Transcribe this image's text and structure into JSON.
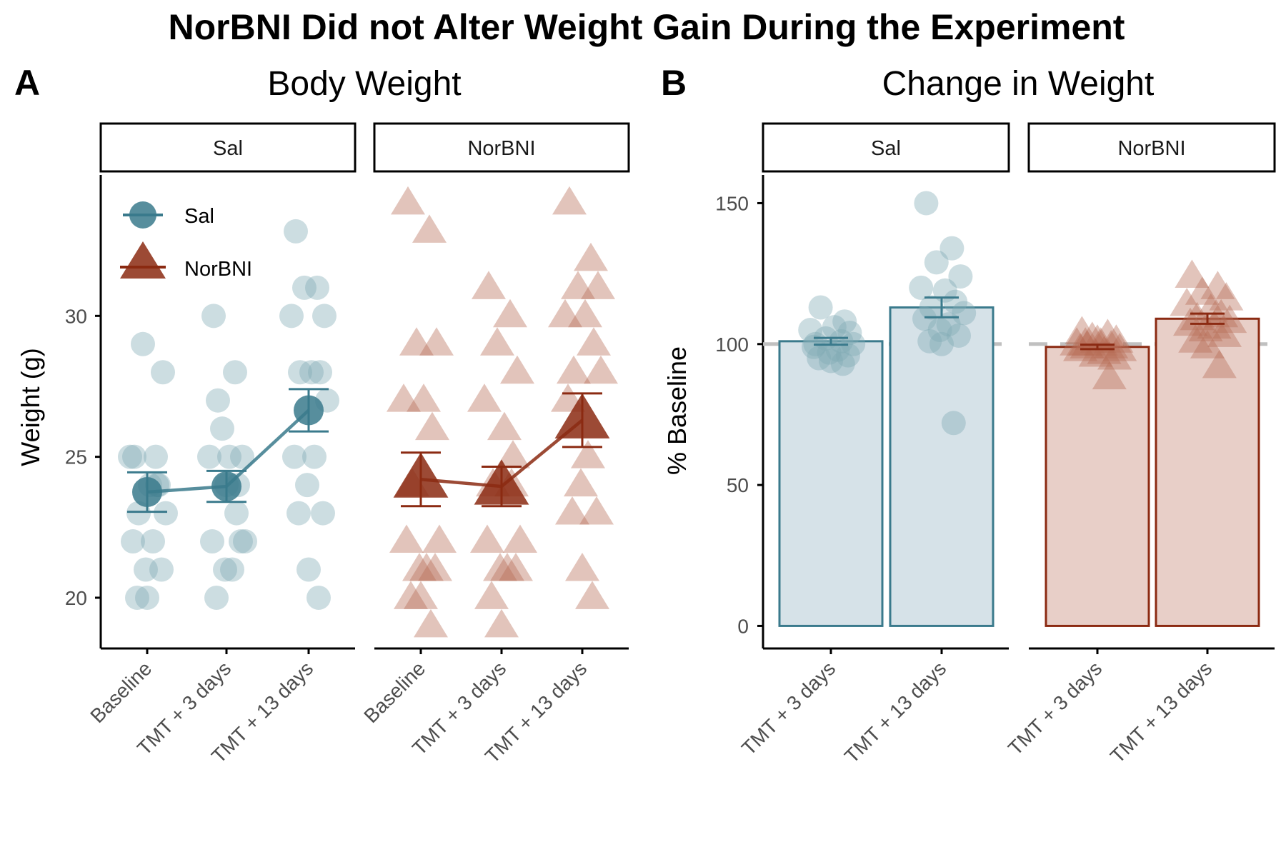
{
  "title": "NorBNI Did not Alter Weight Gain During the Experiment",
  "colors": {
    "sal": "#3A7A8C",
    "norbni": "#8B2A12",
    "baseline_line": "#C0C0C0",
    "axis": "#000000"
  },
  "panel_a": {
    "letter": "A",
    "title": "Body Weight",
    "ylabel": "Weight (g)",
    "facets": [
      "Sal",
      "NorBNI"
    ],
    "legend": [
      "Sal",
      "NorBNI"
    ]
  },
  "panel_b": {
    "letter": "B",
    "title": "Change in Weight",
    "ylabel": "% Baseline",
    "facets": [
      "Sal",
      "NorBNI"
    ]
  },
  "chart_data": [
    {
      "type": "scatter",
      "title": "Body Weight",
      "ylabel": "Weight (g)",
      "xlabel": "",
      "ylim": [
        18.2,
        35
      ],
      "yticks": [
        20,
        25,
        30
      ],
      "categories": [
        "Baseline",
        "TMT + 3 days",
        "TMT + 13 days"
      ],
      "facets": [
        "Sal",
        "NorBNI"
      ],
      "legend": "top-left",
      "series": [
        {
          "name": "Sal",
          "marker": "circle",
          "mean": [
            23.75,
            23.95,
            26.65
          ],
          "se": [
            0.7,
            0.55,
            0.75
          ],
          "points": [
            [
              25,
              25,
              29,
              28,
              25,
              24,
              24,
              23,
              23,
              22,
              22,
              21,
              21,
              20,
              20,
              24
            ],
            [
              30,
              28,
              26,
              25,
              25,
              25,
              24,
              27,
              22,
              22,
              21,
              21,
              22,
              20,
              24,
              23
            ],
            [
              33,
              31,
              31,
              30,
              30,
              28,
              28,
              28,
              27,
              25,
              25,
              24,
              23,
              23,
              21,
              20
            ]
          ]
        },
        {
          "name": "NorBNI",
          "marker": "triangle",
          "mean": [
            24.2,
            23.95,
            26.3
          ],
          "se": [
            0.95,
            0.7,
            0.95
          ],
          "points": [
            [
              34,
              33,
              29,
              29,
              27,
              27,
              26,
              24,
              22,
              22,
              21,
              21,
              21,
              20,
              20,
              19
            ],
            [
              31,
              30,
              29,
              28,
              27,
              26,
              25,
              24,
              22,
              22,
              21,
              21,
              21,
              20,
              19,
              24
            ],
            [
              34,
              32,
              31,
              31,
              30,
              30,
              29,
              28,
              28,
              27,
              25,
              24,
              23,
              23,
              21,
              20
            ]
          ]
        }
      ]
    },
    {
      "type": "bar",
      "title": "Change in Weight",
      "ylabel": "% Baseline",
      "xlabel": "",
      "ylim": [
        -8,
        160
      ],
      "yticks": [
        0,
        50,
        100,
        150
      ],
      "reference_line": 100,
      "categories": [
        "TMT + 3 days",
        "TMT + 13 days"
      ],
      "facets": [
        "Sal",
        "NorBNI"
      ],
      "series": [
        {
          "name": "Sal",
          "values": [
            101,
            113
          ],
          "se": [
            1.2,
            3.5
          ],
          "points": [
            [
              100,
              101,
              102,
              104,
              105,
              106,
              108,
              113,
              100,
              99,
              98,
              97,
              96,
              95,
              94,
              93
            ],
            [
              150,
              134,
              129,
              124,
              120,
              119,
              115,
              113,
              111,
              109,
              107,
              105,
              103,
              101,
              100,
              72
            ]
          ]
        },
        {
          "name": "NorBNI",
          "values": [
            99,
            109
          ],
          "se": [
            0.8,
            1.8
          ],
          "points": [
            [
              104,
              103,
              102,
              101,
              100,
              100,
              99,
              99,
              98,
              98,
              97,
              96,
              95,
              100,
              101,
              88
            ],
            [
              124,
              120,
              118,
              116,
              114,
              112,
              110,
              109,
              108,
              107,
              106,
              105,
              103,
              101,
              99,
              92
            ]
          ]
        }
      ]
    }
  ]
}
